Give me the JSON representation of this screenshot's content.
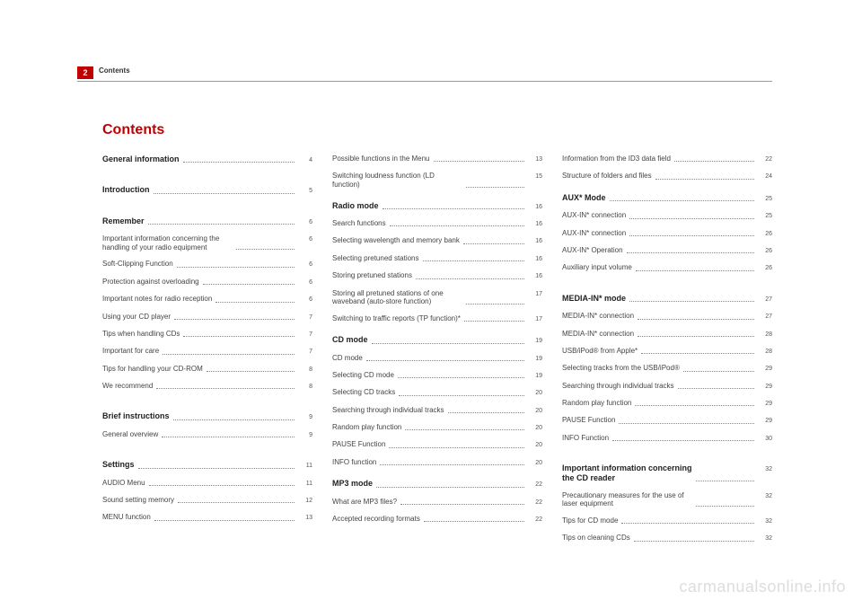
{
  "page_number": "2",
  "running_head": "Contents",
  "title": "Contents",
  "watermark": "carmanualsonline.info",
  "columns": [
    [
      {
        "label": "General information",
        "page": "4",
        "bold": true
      },
      {
        "gap": "large"
      },
      {
        "label": "Introduction",
        "page": "5",
        "bold": true
      },
      {
        "gap": "large"
      },
      {
        "label": "Remember",
        "page": "6",
        "bold": true
      },
      {
        "label": "Important information concerning the handling of your radio equipment",
        "page": "6"
      },
      {
        "label": "Soft-Clipping Function",
        "page": "6"
      },
      {
        "label": "Protection against overloading",
        "page": "6"
      },
      {
        "label": "Important notes for radio reception",
        "page": "6"
      },
      {
        "label": "Using your CD player",
        "page": "7"
      },
      {
        "label": "Tips when handling CDs",
        "page": "7"
      },
      {
        "label": "Important for care",
        "page": "7"
      },
      {
        "label": "Tips for handling your CD-ROM",
        "page": "8"
      },
      {
        "label": "We recommend",
        "page": "8"
      },
      {
        "gap": "large"
      },
      {
        "label": "Brief instructions",
        "page": "9",
        "bold": true
      },
      {
        "label": "General overview",
        "page": "9"
      },
      {
        "gap": "large"
      },
      {
        "label": "Settings",
        "page": "11",
        "bold": true
      },
      {
        "label": "AUDIO Menu",
        "page": "11"
      },
      {
        "label": "Sound setting memory",
        "page": "12"
      },
      {
        "label": "MENU function",
        "page": "13"
      }
    ],
    [
      {
        "label": "Possible functions in the Menu",
        "page": "13"
      },
      {
        "label": "Switching loudness function (LD function)",
        "page": "15"
      },
      {
        "gap": "small"
      },
      {
        "label": "Radio mode",
        "page": "16",
        "bold": true
      },
      {
        "label": "Search functions",
        "page": "16"
      },
      {
        "label": "Selecting wavelength and memory bank",
        "page": "16"
      },
      {
        "label": "Selecting pretuned stations",
        "page": "16"
      },
      {
        "label": "Storing pretuned stations",
        "page": "16"
      },
      {
        "label": "Storing all pretuned stations of one waveband (auto-store function)",
        "page": "17"
      },
      {
        "label": "Switching to traffic reports (TP function)*",
        "page": "17"
      },
      {
        "gap": "small"
      },
      {
        "label": "CD mode",
        "page": "19",
        "bold": true
      },
      {
        "label": "CD mode",
        "page": "19"
      },
      {
        "label": "Selecting CD mode",
        "page": "19"
      },
      {
        "label": "Selecting CD tracks",
        "page": "20"
      },
      {
        "label": "Searching through individual tracks",
        "page": "20"
      },
      {
        "label": "Random play function",
        "page": "20"
      },
      {
        "label": "PAUSE Function",
        "page": "20"
      },
      {
        "label": "INFO function",
        "page": "20"
      },
      {
        "gap": "small"
      },
      {
        "label": "MP3 mode",
        "page": "22",
        "bold": true
      },
      {
        "label": "What are MP3 files?",
        "page": "22"
      },
      {
        "label": "Accepted recording formats",
        "page": "22"
      }
    ],
    [
      {
        "label": "Information from the ID3 data field",
        "page": "22"
      },
      {
        "label": "Structure of folders and files",
        "page": "24"
      },
      {
        "gap": "small"
      },
      {
        "label": "AUX* Mode",
        "page": "25",
        "bold": true
      },
      {
        "label": "AUX-IN* connection",
        "page": "25"
      },
      {
        "label": "AUX-IN* connection",
        "page": "26"
      },
      {
        "label": "AUX-IN* Operation",
        "page": "26"
      },
      {
        "label": "Auxiliary input volume",
        "page": "26"
      },
      {
        "gap": "large"
      },
      {
        "label": "MEDIA-IN* mode",
        "page": "27",
        "bold": true
      },
      {
        "label": "MEDIA-IN* connection",
        "page": "27"
      },
      {
        "label": "MEDIA-IN* connection",
        "page": "28"
      },
      {
        "label": "USB/iPod® from Apple*",
        "page": "28"
      },
      {
        "label": "Selecting tracks from the USB/iPod®",
        "page": "29"
      },
      {
        "label": "Searching through individual tracks",
        "page": "29"
      },
      {
        "label": "Random play function",
        "page": "29"
      },
      {
        "label": "PAUSE Function",
        "page": "29"
      },
      {
        "label": "INFO Function",
        "page": "30"
      },
      {
        "gap": "large"
      },
      {
        "label": "Important information concerning the CD reader",
        "page": "32",
        "bold": true
      },
      {
        "label": "Precautionary measures for the use of laser equipment",
        "page": "32"
      },
      {
        "label": "Tips for CD mode",
        "page": "32"
      },
      {
        "label": "Tips on cleaning CDs",
        "page": "32"
      }
    ]
  ]
}
